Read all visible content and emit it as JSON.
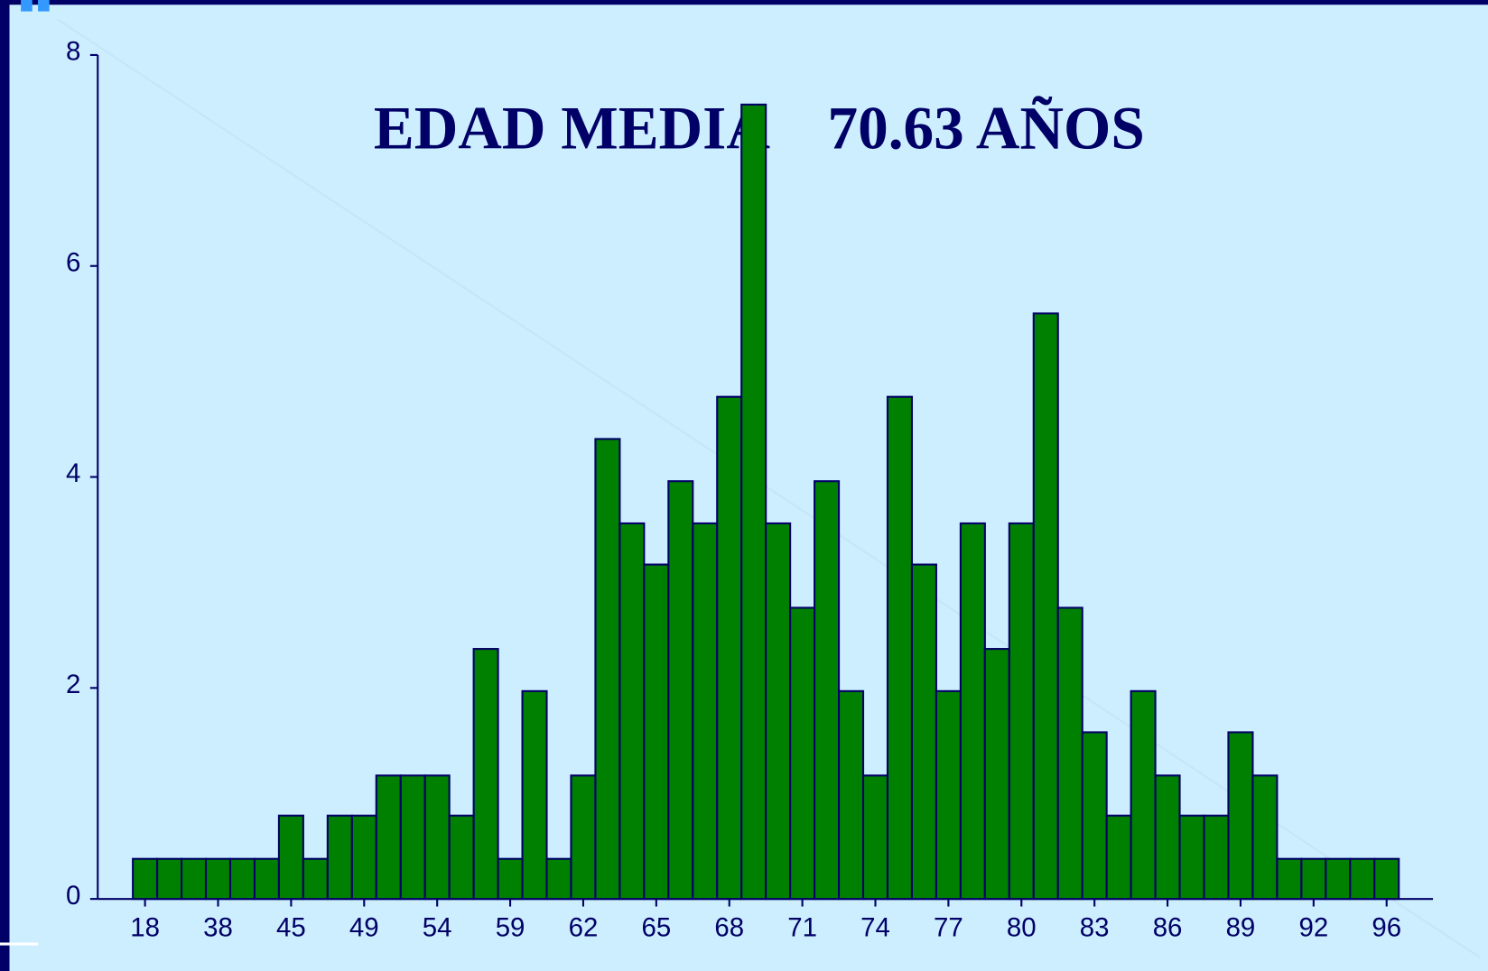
{
  "chart_data": {
    "type": "bar",
    "title": "EDAD MEDIA    70.63 AÑOS",
    "categories": [
      "18",
      null,
      null,
      "38",
      null,
      null,
      "45",
      null,
      null,
      "49",
      null,
      null,
      "54",
      null,
      null,
      "59",
      null,
      null,
      "62",
      null,
      null,
      "65",
      null,
      null,
      "68",
      null,
      null,
      "71",
      null,
      null,
      "74",
      null,
      null,
      "77",
      null,
      null,
      "80",
      null,
      null,
      "83",
      null,
      null,
      "86",
      null,
      null,
      "89",
      null,
      null,
      "92",
      null,
      null,
      "96"
    ],
    "values": [
      0.38,
      0.38,
      0.38,
      0.38,
      0.38,
      0.38,
      0.79,
      0.38,
      0.79,
      0.79,
      1.17,
      1.17,
      1.17,
      0.79,
      2.37,
      0.38,
      1.97,
      0.38,
      1.17,
      4.36,
      3.56,
      3.17,
      3.96,
      3.56,
      4.76,
      7.53,
      3.56,
      2.76,
      3.96,
      1.97,
      1.17,
      4.76,
      3.17,
      1.97,
      3.56,
      2.37,
      3.56,
      5.55,
      2.76,
      1.58,
      0.79,
      1.97,
      1.17,
      0.79,
      0.79,
      1.58,
      1.17,
      0.38,
      0.38,
      0.38,
      0.38,
      0.38
    ],
    "color": "#008000",
    "ylim": [
      0,
      8
    ],
    "yticks": [
      0,
      2,
      4,
      6,
      8
    ]
  }
}
